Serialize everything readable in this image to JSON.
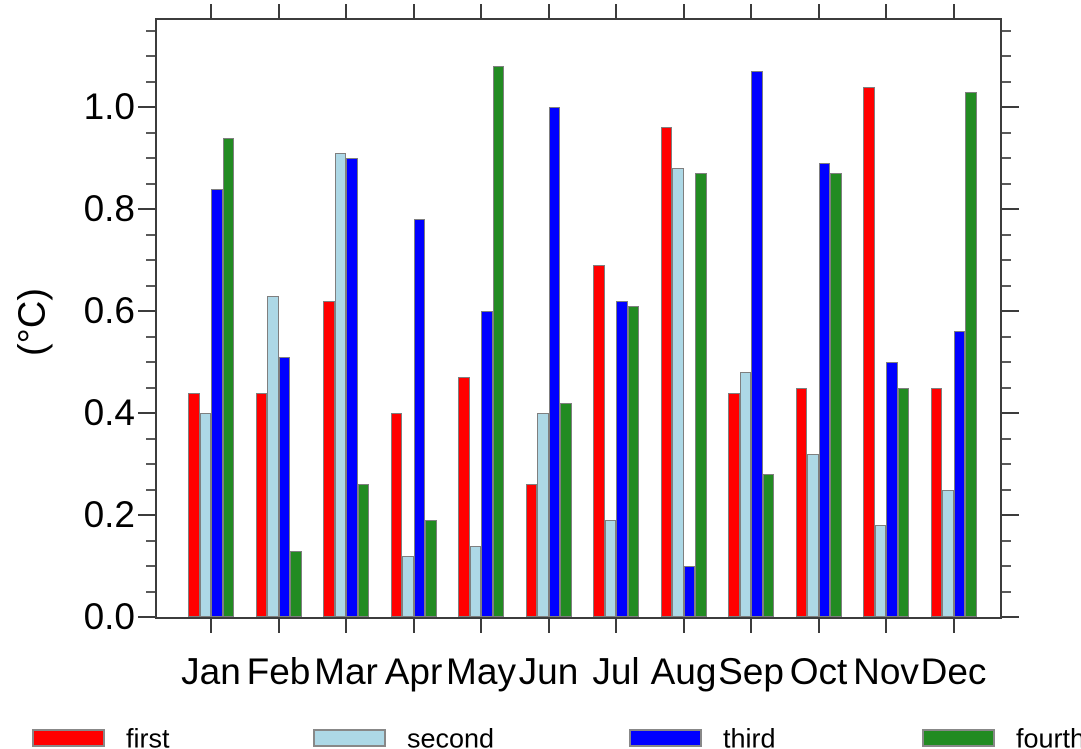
{
  "chart_data": {
    "type": "bar",
    "title": "",
    "xlabel": "",
    "ylabel": "(°C)",
    "categories": [
      "Jan",
      "Feb",
      "Mar",
      "Apr",
      "May",
      "Jun",
      "Jul",
      "Aug",
      "Sep",
      "Oct",
      "Nov",
      "Dec"
    ],
    "series": [
      {
        "name": "first",
        "color": "#FF0000",
        "values": [
          0.44,
          0.44,
          0.62,
          0.4,
          0.47,
          0.26,
          0.69,
          0.96,
          0.44,
          0.45,
          1.04,
          0.45
        ]
      },
      {
        "name": "second",
        "color": "#ADD8E6",
        "values": [
          0.4,
          0.63,
          0.91,
          0.12,
          0.14,
          0.4,
          0.19,
          0.88,
          0.48,
          0.32,
          0.18,
          0.25
        ]
      },
      {
        "name": "third",
        "color": "#0000FF",
        "values": [
          0.84,
          0.51,
          0.9,
          0.78,
          0.6,
          1.0,
          0.62,
          0.1,
          1.07,
          0.89,
          0.5,
          0.56
        ]
      },
      {
        "name": "fourth",
        "color": "#228B22",
        "values": [
          0.94,
          0.13,
          0.26,
          0.19,
          1.08,
          0.42,
          0.61,
          0.87,
          0.28,
          0.87,
          0.45,
          1.03
        ]
      }
    ],
    "ylim": [
      0,
      1.175
    ],
    "ytick_labels": [
      "0.0",
      "0.2",
      "0.4",
      "0.6",
      "0.8",
      "1.0"
    ],
    "ytick_major_step": 0.2,
    "ytick_minor_step": 0.05,
    "grid": false,
    "legend_position": "bottom",
    "legend_labels": [
      "first",
      "second",
      "third",
      "fourth"
    ]
  }
}
